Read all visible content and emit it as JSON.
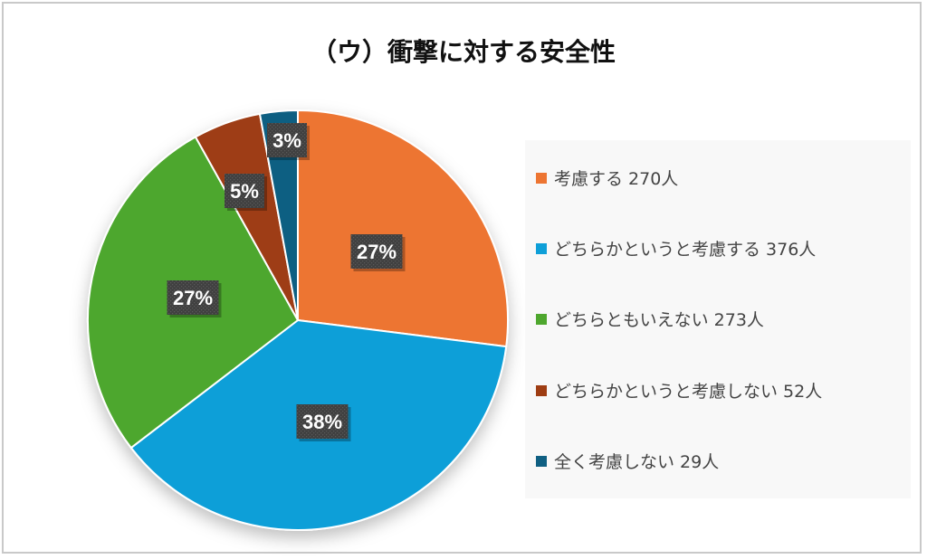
{
  "chart_data": {
    "type": "pie",
    "title": "（ウ）衝撃に対する安全性",
    "slices": [
      {
        "label": "考慮する 270人",
        "value": 270,
        "percent_label": "27%",
        "color": "#ed7532"
      },
      {
        "label": "どちらかというと考慮する 376人",
        "value": 376,
        "percent_label": "38%",
        "color": "#0e9fd8"
      },
      {
        "label": "どちらともいえない 273人",
        "value": 273,
        "percent_label": "27%",
        "color": "#4ea72e"
      },
      {
        "label": "どちらかというと考慮しない 52人",
        "value": 52,
        "percent_label": "5%",
        "color": "#9e3d13"
      },
      {
        "label": "全く考慮しない 29人",
        "value": 29,
        "percent_label": "3%",
        "color": "#0f5f82"
      }
    ],
    "start_angle": "12 o'clock",
    "direction": "clockwise",
    "legend_position": "right"
  }
}
